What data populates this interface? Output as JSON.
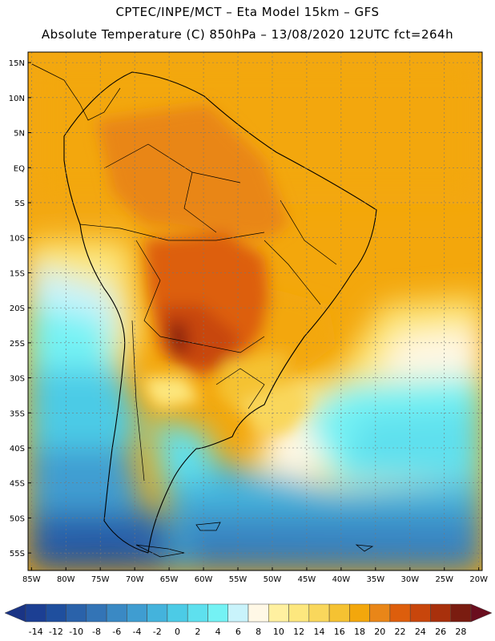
{
  "header": {
    "line1": "CPTEC/INPE/MCT –  Eta Model 15km – GFS",
    "line2": "Absolute Temperature (C) 850hPa – 13/08/2020 12UTC fct=264h"
  },
  "map": {
    "region": "South America",
    "variable": "Absolute Temperature (C) 850hPa",
    "lat_labels": [
      "15N",
      "10N",
      "5N",
      "EQ",
      "5S",
      "10S",
      "15S",
      "20S",
      "25S",
      "30S",
      "35S",
      "40S",
      "45S",
      "50S",
      "55S"
    ],
    "lat_values": [
      15,
      10,
      5,
      0,
      -5,
      -10,
      -15,
      -20,
      -25,
      -30,
      -35,
      -40,
      -45,
      -50,
      -55
    ],
    "lon_labels": [
      "85W",
      "80W",
      "75W",
      "70W",
      "65W",
      "60W",
      "55W",
      "50W",
      "45W",
      "40W",
      "35W",
      "30W",
      "25W",
      "20W"
    ],
    "lon_values": [
      -85,
      -80,
      -75,
      -70,
      -65,
      -60,
      -55,
      -50,
      -45,
      -40,
      -35,
      -30,
      -25,
      -20
    ],
    "lon_range": [
      -85.5,
      -19.5
    ],
    "lat_range": [
      -57.5,
      16.5
    ]
  },
  "colorbar": {
    "labels": [
      "-14",
      "-12",
      "-10",
      "-8",
      "-6",
      "-4",
      "-2",
      "0",
      "2",
      "4",
      "6",
      "8",
      "10",
      "12",
      "14",
      "16",
      "18",
      "20",
      "22",
      "24",
      "26",
      "28"
    ],
    "colors": [
      "#1c3f93",
      "#1f4f9e",
      "#2a62aa",
      "#3374b6",
      "#3a89c4",
      "#3f9dd1",
      "#44b3dc",
      "#4ccbe6",
      "#5ee0ee",
      "#74f2f4",
      "#c9f3fb",
      "#fff8e6",
      "#fff0a0",
      "#fde77e",
      "#f9d75c",
      "#f5c232",
      "#f3a70c",
      "#e98618",
      "#dd5e0c",
      "#c8460c",
      "#a8300c",
      "#7a1c10"
    ],
    "left_tip_color": "#1a3485",
    "right_tip_color": "#6a0e1e"
  }
}
